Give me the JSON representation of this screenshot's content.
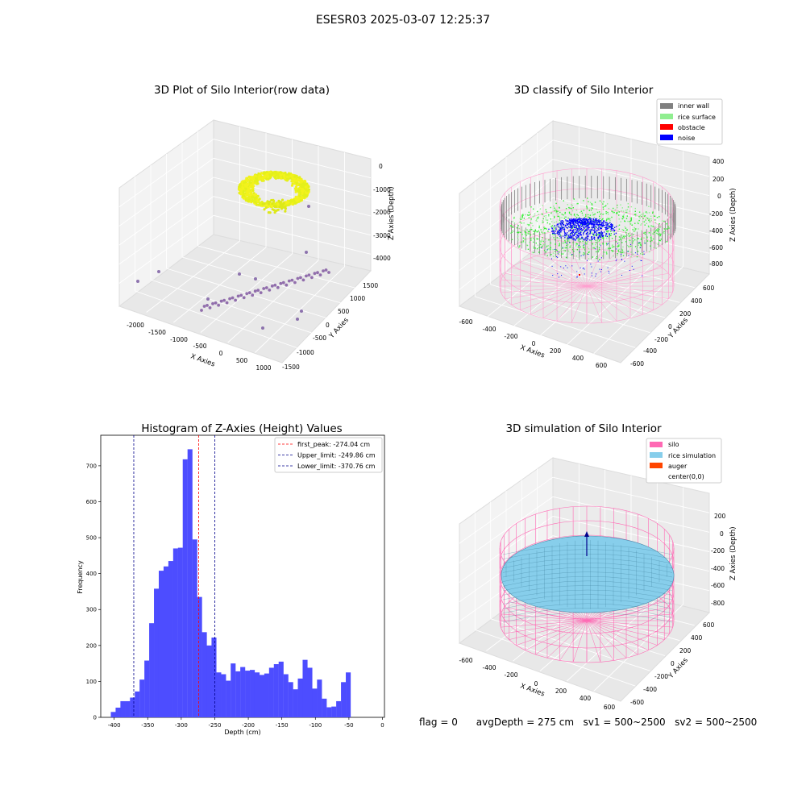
{
  "figure": {
    "suptitle": "ESESR03 2025-03-07 12:25:37",
    "status": {
      "flag": "flag = 0",
      "avg_depth": "avgDepth = 275 cm",
      "sv1": "sv1 = 500~2500",
      "sv2": "sv2 = 500~2500"
    }
  },
  "colors": {
    "histogram_bar": "#4d4dff",
    "first_peak_line": "#ff0000",
    "limit_lines": "#00008b",
    "inner_wall": "#808080",
    "rice_surface": "#90ee90",
    "obstacle": "#ff0000",
    "noise": "#0000ff",
    "silo": "#ff69b4",
    "rice_simulation": "#87ceeb",
    "auger": "#ff4500"
  },
  "chart_data": [
    {
      "type": "scatter",
      "subtype": "3d-scatter",
      "title": "3D Plot of Silo Interior(row data)",
      "xlabel": "X Axies",
      "ylabel": "Y Axies",
      "zlabel": "Z Axies (Depth)",
      "x_ticks": [
        "-2000",
        "-1500",
        "-1000",
        "-500",
        "0",
        "500",
        "1000"
      ],
      "y_ticks": [
        "1500",
        "1000",
        "500",
        "0",
        "-500",
        "-1000",
        "-1500"
      ],
      "z_ticks": [
        "0",
        "-1000",
        "-2000",
        "-3000",
        "-4000"
      ],
      "grid": true
    },
    {
      "type": "scatter",
      "subtype": "3d-classification",
      "title": "3D classify of Silo Interior",
      "xlabel": "X Axies",
      "ylabel": "Y Axies",
      "zlabel": "Z Axies (Depth)",
      "x_ticks": [
        "-600",
        "-400",
        "-200",
        "0",
        "200",
        "400",
        "600"
      ],
      "y_ticks": [
        "600",
        "400",
        "200",
        "0",
        "-200",
        "-400",
        "-600"
      ],
      "z_ticks": [
        "400",
        "200",
        "0",
        "-200",
        "-400",
        "-600",
        "-800"
      ],
      "legend": [
        "inner wall",
        "rice surface",
        "obstacle",
        "noise"
      ],
      "legend_colors": [
        "#808080",
        "#90ee90",
        "#ff0000",
        "#0000ff"
      ],
      "legend_position": "top-right",
      "grid": true
    },
    {
      "type": "bar",
      "subtype": "histogram",
      "title": "Histogram of Z-Axies (Height) Values",
      "xlabel": "Depth (cm)",
      "ylabel": "Frequency",
      "bin_width": 7.15,
      "bin_start": -405.0,
      "bin_counts": [
        15,
        27,
        45,
        45,
        55,
        72,
        105,
        158,
        262,
        358,
        408,
        420,
        435,
        470,
        472,
        718,
        746,
        495,
        335,
        237,
        200,
        222,
        125,
        120,
        102,
        150,
        128,
        140,
        130,
        132,
        125,
        118,
        122,
        138,
        148,
        155,
        120,
        98,
        78,
        108,
        160,
        138,
        80,
        105,
        52,
        28,
        30,
        45,
        98,
        125
      ],
      "xlim": [
        -420,
        3
      ],
      "ylim": [
        0,
        785
      ],
      "x_ticks": [
        -400,
        -350,
        -300,
        -250,
        -200,
        -150,
        -100,
        -50,
        0
      ],
      "y_ticks": [
        0,
        100,
        200,
        300,
        400,
        500,
        600,
        700
      ],
      "lines": [
        {
          "name": "first_peak: -274.04 cm",
          "x": -274.04,
          "style": "dashed",
          "color": "#ff0000"
        },
        {
          "name": "Upper_limit: -249.86 cm",
          "x": -249.86,
          "style": "dashed",
          "color": "#00008b"
        },
        {
          "name": "Lower_limit: -370.76 cm",
          "x": -370.76,
          "style": "dashed",
          "color": "#00008b"
        }
      ],
      "legend_position": "top-right",
      "grid": false
    },
    {
      "type": "area",
      "subtype": "3d-surface",
      "title": "3D simulation of Silo Interior",
      "xlabel": "X Axies",
      "ylabel": "Y Axies",
      "zlabel": "Z Axies (Depth)",
      "x_ticks": [
        "-600",
        "-400",
        "-200",
        "0",
        "200",
        "400",
        "600"
      ],
      "y_ticks": [
        "600",
        "400",
        "200",
        "0",
        "-200",
        "-400",
        "-600"
      ],
      "z_ticks": [
        "200",
        "0",
        "-200",
        "-400",
        "-600",
        "-800"
      ],
      "legend": [
        "silo",
        "rice simulation",
        "auger",
        "center(0,0)"
      ],
      "legend_colors": [
        "#ff69b4",
        "#87ceeb",
        "#ff4500",
        ""
      ],
      "legend_position": "top-right",
      "grid": true
    }
  ]
}
